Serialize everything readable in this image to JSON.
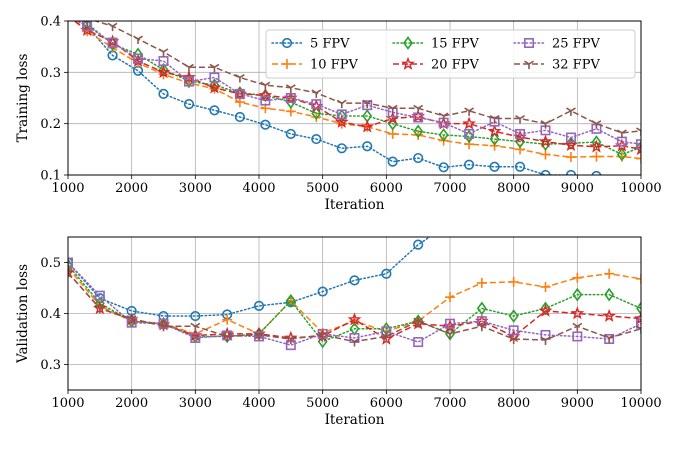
{
  "chart_data": [
    {
      "type": "line",
      "xlabel": "Iteration",
      "ylabel": "Training loss",
      "xlim": [
        1000,
        10000
      ],
      "ylim": [
        0.1,
        0.4
      ],
      "xticks": [
        1000,
        2000,
        3000,
        4000,
        5000,
        6000,
        7000,
        8000,
        9000,
        10000
      ],
      "yticks": [
        0.1,
        0.2,
        0.3,
        0.4
      ],
      "grid": true,
      "legend": "top-right",
      "series": [
        {
          "name": "5 FPV",
          "color": "#1f77b4",
          "marker": "circle",
          "dash": "dotted",
          "x": [
            1000,
            1300,
            1700,
            2100,
            2500,
            2900,
            3300,
            3700,
            4100,
            4500,
            4900,
            5300,
            5700,
            6100,
            6500,
            6900,
            7300,
            7700,
            8100,
            8500,
            8900,
            9300
          ],
          "y": [
            0.41,
            0.39,
            0.333,
            0.303,
            0.258,
            0.238,
            0.226,
            0.213,
            0.198,
            0.18,
            0.17,
            0.152,
            0.156,
            0.126,
            0.133,
            0.115,
            0.12,
            0.116,
            0.116,
            0.1,
            0.1,
            0.098
          ]
        },
        {
          "name": "10 FPV",
          "color": "#ff7f0e",
          "marker": "plus",
          "dash": "dashed",
          "x": [
            1000,
            1300,
            1700,
            2100,
            2500,
            2900,
            3300,
            3700,
            4100,
            4500,
            4900,
            5300,
            5700,
            6100,
            6500,
            6900,
            7300,
            7700,
            8100,
            8500,
            8900,
            9300,
            9700,
            10000
          ],
          "y": [
            0.41,
            0.38,
            0.348,
            0.318,
            0.296,
            0.279,
            0.268,
            0.242,
            0.23,
            0.224,
            0.213,
            0.2,
            0.194,
            0.18,
            0.178,
            0.167,
            0.16,
            0.157,
            0.15,
            0.14,
            0.135,
            0.136,
            0.136,
            0.132
          ]
        },
        {
          "name": "15 FPV",
          "color": "#2ca02c",
          "marker": "diamond",
          "dash": "dotted",
          "x": [
            1000,
            1300,
            1700,
            2100,
            2500,
            2900,
            3300,
            3700,
            4100,
            4500,
            4900,
            5300,
            5700,
            6100,
            6500,
            6900,
            7300,
            7700,
            8100,
            8500,
            8900,
            9300,
            9700,
            10000
          ],
          "y": [
            0.41,
            0.395,
            0.355,
            0.335,
            0.305,
            0.283,
            0.275,
            0.26,
            0.255,
            0.242,
            0.22,
            0.215,
            0.215,
            0.2,
            0.185,
            0.178,
            0.175,
            0.17,
            0.165,
            0.16,
            0.162,
            0.164,
            0.14,
            0.154
          ]
        },
        {
          "name": "20 FPV",
          "color": "#d62728",
          "marker": "star",
          "dash": "dashed",
          "x": [
            1000,
            1300,
            1700,
            2100,
            2500,
            2900,
            3300,
            3700,
            4100,
            4500,
            4900,
            5300,
            5700,
            6100,
            6500,
            6900,
            7300,
            7700,
            8100,
            8500,
            8900,
            9300,
            9700,
            10000
          ],
          "y": [
            0.41,
            0.382,
            0.36,
            0.322,
            0.3,
            0.29,
            0.27,
            0.258,
            0.255,
            0.25,
            0.234,
            0.203,
            0.194,
            0.21,
            0.214,
            0.2,
            0.2,
            0.185,
            0.174,
            0.165,
            0.158,
            0.155,
            0.157,
            0.15
          ]
        },
        {
          "name": "25 FPV",
          "color": "#9467bd",
          "marker": "square",
          "dash": "dotted",
          "x": [
            1000,
            1300,
            1700,
            2100,
            2500,
            2900,
            3300,
            3700,
            4100,
            4500,
            4900,
            5300,
            5700,
            6100,
            6500,
            6900,
            7300,
            7700,
            8100,
            8500,
            8900,
            9300,
            9700,
            10000
          ],
          "y": [
            0.41,
            0.39,
            0.358,
            0.327,
            0.322,
            0.282,
            0.29,
            0.258,
            0.245,
            0.25,
            0.238,
            0.218,
            0.236,
            0.222,
            0.212,
            0.202,
            0.18,
            0.204,
            0.18,
            0.187,
            0.173,
            0.19,
            0.165,
            0.16
          ]
        },
        {
          "name": "32 FPV",
          "color": "#8c564b",
          "marker": "tri_down",
          "dash": "dashed",
          "x": [
            1000,
            1300,
            1700,
            2100,
            2500,
            2900,
            3300,
            3700,
            4100,
            4500,
            4900,
            5300,
            5700,
            6100,
            6500,
            6900,
            7300,
            7700,
            8100,
            8500,
            8900,
            9300,
            9700,
            10000
          ],
          "y": [
            0.42,
            0.405,
            0.39,
            0.365,
            0.34,
            0.31,
            0.31,
            0.29,
            0.275,
            0.27,
            0.26,
            0.24,
            0.24,
            0.23,
            0.23,
            0.215,
            0.225,
            0.21,
            0.21,
            0.2,
            0.225,
            0.2,
            0.182,
            0.186
          ]
        }
      ]
    },
    {
      "type": "line",
      "xlabel": "Iteration",
      "ylabel": "Validation loss",
      "xlim": [
        1000,
        10000
      ],
      "ylim": [
        0.25,
        0.55
      ],
      "xticks": [
        1000,
        2000,
        3000,
        4000,
        5000,
        6000,
        7000,
        8000,
        9000,
        10000
      ],
      "yticks": [
        0.3,
        0.4,
        0.5
      ],
      "grid": true,
      "series": [
        {
          "name": "5 FPV",
          "color": "#1f77b4",
          "marker": "circle",
          "dash": "dotted",
          "x": [
            1000,
            1500,
            2000,
            2500,
            3000,
            3500,
            4000,
            4500,
            5000,
            5500,
            6000,
            6500,
            6800
          ],
          "y": [
            0.5,
            0.43,
            0.405,
            0.395,
            0.395,
            0.398,
            0.415,
            0.422,
            0.443,
            0.465,
            0.478,
            0.535,
            0.56
          ]
        },
        {
          "name": "10 FPV",
          "color": "#ff7f0e",
          "marker": "plus",
          "dash": "dashed",
          "x": [
            1000,
            1500,
            2000,
            2500,
            3000,
            3500,
            4000,
            4500,
            5000,
            5500,
            6000,
            6500,
            7000,
            7500,
            8000,
            8500,
            9000,
            9500,
            10000
          ],
          "y": [
            0.49,
            0.415,
            0.385,
            0.38,
            0.36,
            0.388,
            0.36,
            0.425,
            0.362,
            0.385,
            0.365,
            0.385,
            0.432,
            0.46,
            0.462,
            0.452,
            0.47,
            0.478,
            0.468
          ]
        },
        {
          "name": "15 FPV",
          "color": "#2ca02c",
          "marker": "diamond",
          "dash": "dotted",
          "x": [
            1000,
            1500,
            2000,
            2500,
            3000,
            3500,
            4000,
            4500,
            5000,
            5500,
            6000,
            6500,
            7000,
            7500,
            8000,
            8500,
            9000,
            9500,
            10000
          ],
          "y": [
            0.495,
            0.42,
            0.385,
            0.38,
            0.355,
            0.355,
            0.36,
            0.425,
            0.345,
            0.37,
            0.37,
            0.385,
            0.36,
            0.41,
            0.395,
            0.41,
            0.437,
            0.437,
            0.41
          ]
        },
        {
          "name": "20 FPV",
          "color": "#d62728",
          "marker": "star",
          "dash": "dashed",
          "x": [
            1000,
            1500,
            2000,
            2500,
            3000,
            3500,
            4000,
            4500,
            5000,
            5500,
            6000,
            6500,
            7000,
            7500,
            8000,
            8500,
            9000,
            9500,
            10000
          ],
          "y": [
            0.48,
            0.41,
            0.388,
            0.378,
            0.357,
            0.36,
            0.36,
            0.352,
            0.356,
            0.388,
            0.35,
            0.38,
            0.375,
            0.385,
            0.355,
            0.405,
            0.4,
            0.395,
            0.39
          ]
        },
        {
          "name": "25 FPV",
          "color": "#9467bd",
          "marker": "square",
          "dash": "dotted",
          "x": [
            1000,
            1500,
            2000,
            2500,
            3000,
            3500,
            4000,
            4500,
            5000,
            5500,
            6000,
            6500,
            7000,
            7500,
            8000,
            8500,
            9000,
            9500,
            10000
          ],
          "y": [
            0.5,
            0.435,
            0.382,
            0.38,
            0.352,
            0.357,
            0.355,
            0.338,
            0.36,
            0.352,
            0.365,
            0.344,
            0.38,
            0.385,
            0.367,
            0.358,
            0.355,
            0.35,
            0.38
          ]
        },
        {
          "name": "32 FPV",
          "color": "#8c564b",
          "marker": "tri_down",
          "dash": "dashed",
          "x": [
            1000,
            1500,
            2000,
            2500,
            3000,
            3500,
            4000,
            4500,
            5000,
            5500,
            6000,
            6500,
            7000,
            7500,
            8000,
            8500,
            9000,
            9500,
            10000
          ],
          "y": [
            0.48,
            0.41,
            0.39,
            0.375,
            0.375,
            0.355,
            0.358,
            0.35,
            0.358,
            0.345,
            0.355,
            0.385,
            0.36,
            0.375,
            0.35,
            0.348,
            0.375,
            0.352,
            0.37
          ]
        }
      ]
    }
  ]
}
